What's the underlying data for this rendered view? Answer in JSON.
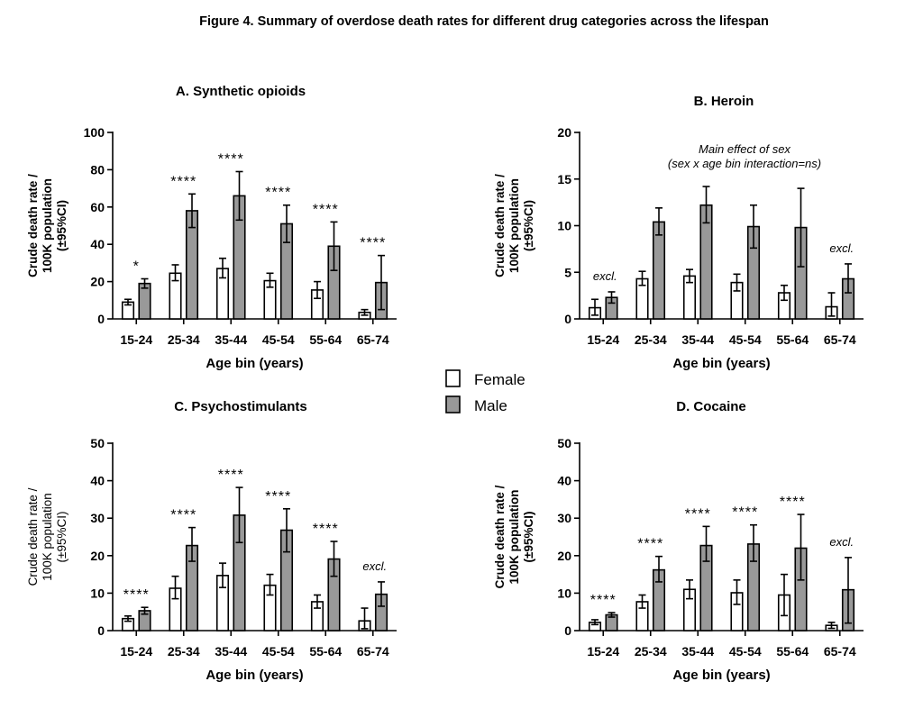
{
  "figure_title": "Figure 4. Summary of overdose death rates for different drug categories across the lifespan",
  "legend": [
    {
      "label": "Female",
      "color": "#ffffff"
    },
    {
      "label": "Male",
      "color": "#999999"
    }
  ],
  "colors": {
    "female": "#ffffff",
    "male": "#999999",
    "stroke": "#000000"
  },
  "chart_data": [
    {
      "type": "bar",
      "title": "A. Synthetic opioids",
      "xlabel": "Age bin (years)",
      "ylabel": [
        "Crude death rate /",
        "100K population",
        "(±95%CI)"
      ],
      "ylim": [
        0,
        100
      ],
      "yticks": [
        0,
        20,
        40,
        60,
        80,
        100
      ],
      "categories": [
        "15-24",
        "25-34",
        "35-44",
        "45-54",
        "55-64",
        "65-74"
      ],
      "series": [
        {
          "name": "Female",
          "values": [
            9,
            24.5,
            27,
            20.5,
            15.5,
            3.5
          ],
          "ci_low": [
            7.5,
            20.5,
            22,
            17,
            11,
            2
          ],
          "ci_high": [
            10.5,
            29,
            32.5,
            24.5,
            20,
            5
          ]
        },
        {
          "name": "Male",
          "values": [
            19,
            58,
            66,
            51,
            39,
            19.5
          ],
          "ci_low": [
            16.5,
            49,
            53,
            41,
            26,
            5
          ],
          "ci_high": [
            21.5,
            67,
            79,
            61,
            52,
            34
          ]
        }
      ],
      "significance": [
        "*",
        "****",
        "****",
        "****",
        "****",
        "****"
      ],
      "note": ""
    },
    {
      "type": "bar",
      "title": "B. Heroin",
      "xlabel": "Age bin (years)",
      "ylabel": [
        "Crude death rate /",
        "100K population",
        "(±95%CI)"
      ],
      "ylim": [
        0,
        20
      ],
      "yticks": [
        0,
        5,
        10,
        15,
        20
      ],
      "categories": [
        "15-24",
        "25-34",
        "35-44",
        "45-54",
        "55-64",
        "65-74"
      ],
      "series": [
        {
          "name": "Female",
          "values": [
            1.2,
            4.3,
            4.6,
            3.9,
            2.8,
            1.3
          ],
          "ci_low": [
            0.4,
            3.6,
            3.9,
            3.0,
            2.0,
            0.3
          ],
          "ci_high": [
            2.1,
            5.1,
            5.3,
            4.8,
            3.6,
            2.8
          ]
        },
        {
          "name": "Male",
          "values": [
            2.3,
            10.4,
            12.2,
            9.9,
            9.8,
            4.3
          ],
          "ci_low": [
            1.7,
            9.0,
            10.3,
            7.6,
            5.6,
            2.8
          ],
          "ci_high": [
            2.9,
            11.9,
            14.2,
            12.2,
            14.0,
            5.9
          ]
        }
      ],
      "significance": [
        "",
        "",
        "",
        "",
        "",
        ""
      ],
      "annotations": [
        {
          "text": "excl.",
          "category": 0
        },
        {
          "text": "excl.",
          "category": 5
        }
      ],
      "note": [
        "Main effect of sex",
        "(sex x age bin interaction=ns)"
      ]
    },
    {
      "type": "bar",
      "title": "C. Psychostimulants",
      "xlabel": "Age bin (years)",
      "ylabel": [
        "Crude death rate /",
        "100K population",
        "(±95%CI)"
      ],
      "ylim": [
        0,
        50
      ],
      "yticks": [
        0,
        10,
        20,
        30,
        40,
        50
      ],
      "categories": [
        "15-24",
        "25-34",
        "35-44",
        "45-54",
        "55-64",
        "65-74"
      ],
      "series": [
        {
          "name": "Female",
          "values": [
            3.2,
            11.3,
            14.7,
            12.1,
            7.7,
            2.6
          ],
          "ci_low": [
            2.5,
            8.5,
            11.5,
            9.5,
            6.0,
            0.5
          ],
          "ci_high": [
            3.9,
            14.5,
            18.0,
            15.0,
            9.5,
            6.0
          ]
        },
        {
          "name": "Male",
          "values": [
            5.3,
            22.7,
            30.8,
            26.8,
            19.1,
            9.7
          ],
          "ci_low": [
            4.4,
            18.5,
            23.5,
            21.0,
            14.5,
            6.5
          ],
          "ci_high": [
            6.2,
            27.5,
            38.2,
            32.5,
            23.8,
            13.0
          ]
        }
      ],
      "significance": [
        "****",
        "****",
        "****",
        "****",
        "****",
        ""
      ],
      "annotations": [
        {
          "text": "excl.",
          "category": 5
        }
      ],
      "note": ""
    },
    {
      "type": "bar",
      "title": "D. Cocaine",
      "xlabel": "Age bin (years)",
      "ylabel": [
        "Crude death rate /",
        "100K population",
        "(±95%CI)"
      ],
      "ylim": [
        0,
        50
      ],
      "yticks": [
        0,
        10,
        20,
        30,
        40,
        50
      ],
      "categories": [
        "15-24",
        "25-34",
        "35-44",
        "45-54",
        "55-64",
        "65-74"
      ],
      "series": [
        {
          "name": "Female",
          "values": [
            2.2,
            7.7,
            11.0,
            10.1,
            9.5,
            1.4
          ],
          "ci_low": [
            1.6,
            6.0,
            8.5,
            7.0,
            4.0,
            0.6
          ],
          "ci_high": [
            2.9,
            9.5,
            13.5,
            13.5,
            15.0,
            2.2
          ]
        },
        {
          "name": "Male",
          "values": [
            4.2,
            16.2,
            22.7,
            23.1,
            22.0,
            10.9
          ],
          "ci_low": [
            3.6,
            13.0,
            18.5,
            18.5,
            13.5,
            2.0
          ],
          "ci_high": [
            4.8,
            19.8,
            27.8,
            28.2,
            31.0,
            19.5
          ]
        }
      ],
      "significance": [
        "****",
        "****",
        "****",
        "****",
        "****",
        ""
      ],
      "annotations": [
        {
          "text": "excl.",
          "category": 5
        }
      ],
      "note": ""
    }
  ]
}
